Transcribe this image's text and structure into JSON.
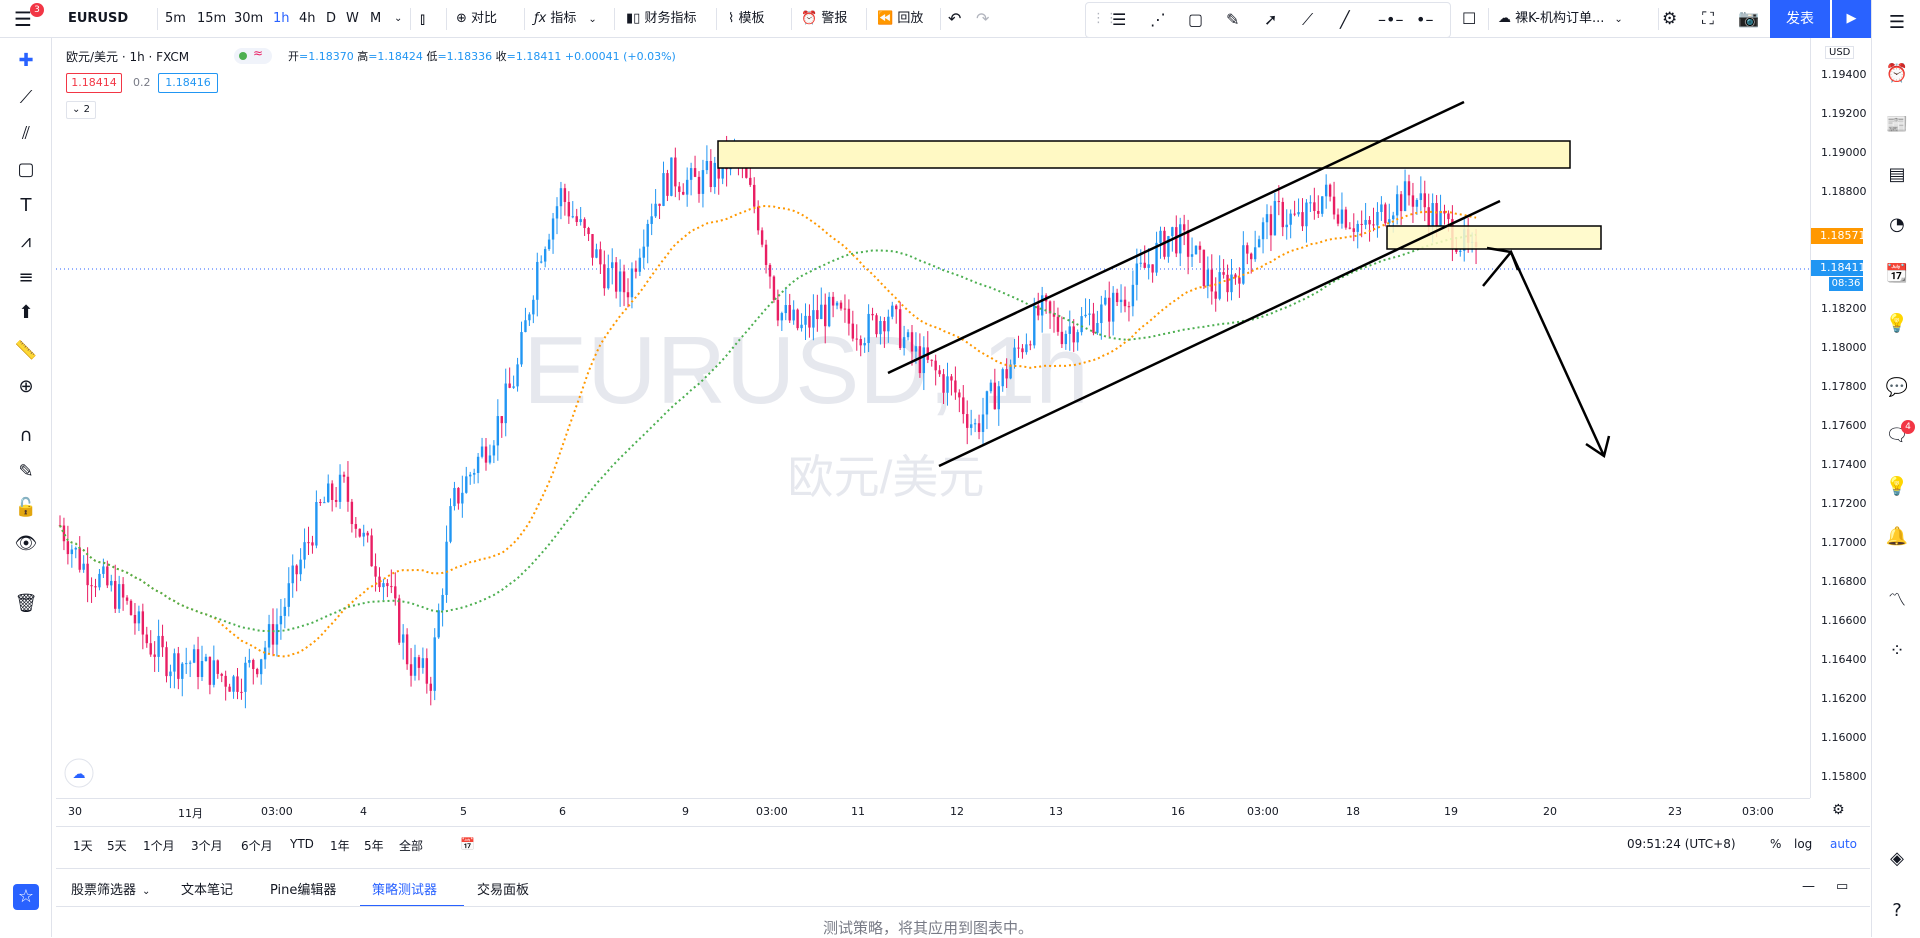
{
  "topbar": {
    "symbol": "EURUSD",
    "menu_badge": "3",
    "intervals": [
      "5m",
      "15m",
      "30m",
      "1h",
      "4h",
      "D",
      "W",
      "M"
    ],
    "active_interval": "1h",
    "compare": "对比",
    "indicators": "指标",
    "financials": "财务指标",
    "templates": "模板",
    "alert": "警报",
    "replay": "回放",
    "layout_name": "裸K-机构订单...",
    "publish": "发表"
  },
  "legend": {
    "title": "欧元/美元 · 1h · FXCM",
    "open_label": "开",
    "open": "=1.18370",
    "high_label": "高",
    "high": "=1.18424",
    "low_label": "低",
    "low": "=1.18336",
    "close_label": "收",
    "close": "=1.18411",
    "change": "+0.00041 (+0.03%)",
    "bid": "1.18414",
    "spread": "0.2",
    "ask": "1.18416",
    "collapse_count": "2"
  },
  "watermark": {
    "symbol": "EURUSD, 1h",
    "name": "欧元/美元"
  },
  "price_axis": {
    "currency": "USD",
    "labels": [
      "1.19400",
      "1.19200",
      "1.19000",
      "1.18800",
      "1.18571",
      "1.18411",
      "1.18200",
      "1.18000",
      "1.17800",
      "1.17600",
      "1.17400",
      "1.17200",
      "1.17000",
      "1.16800",
      "1.16600",
      "1.16400",
      "1.16200",
      "1.16000",
      "1.15800"
    ],
    "ma_badge": "1.18571",
    "price_badge": "1.18411",
    "countdown": "08:36"
  },
  "time_axis": [
    "30",
    "11月",
    "03:00",
    "4",
    "5",
    "6",
    "9",
    "03:00",
    "11",
    "12",
    "13",
    "16",
    "03:00",
    "18",
    "19",
    "20",
    "23",
    "03:00"
  ],
  "range_bar": {
    "ranges": [
      "1天",
      "5天",
      "1个月",
      "3个月",
      "6个月",
      "YTD",
      "1年",
      "5年",
      "全部"
    ],
    "clock": "09:51:24 (UTC+8)",
    "pct": "%",
    "log": "log",
    "auto": "auto"
  },
  "bottom_panel": {
    "tabs": [
      "股票筛选器",
      "文本笔记",
      "Pine编辑器",
      "策略测试器",
      "交易面板"
    ],
    "active_tab": "策略测试器",
    "message": "测试策略，将其应用到图表中。"
  },
  "right_badge": "4",
  "colors": {
    "accent": "#2962ff",
    "up": "#2196f3",
    "down": "#e91e63",
    "ma_fast": "#ff9800",
    "ma_slow": "#4caf50",
    "zone": "#fff9c4"
  },
  "chart_data": {
    "type": "candlestick",
    "ylim": [
      1.157,
      1.196
    ],
    "ma_fast_badge": 1.18571,
    "last_price": 1.18411,
    "series_shape": [
      1.171,
      1.169,
      1.168,
      1.167,
      1.165,
      1.164,
      1.164,
      1.1635,
      1.163,
      1.164,
      1.166,
      1.169,
      1.172,
      1.173,
      1.17,
      1.168,
      1.164,
      1.163,
      1.172,
      1.174,
      1.176,
      1.179,
      1.185,
      1.188,
      1.186,
      1.184,
      1.183,
      1.187,
      1.189,
      1.1885,
      1.189,
      1.19,
      1.187,
      1.182,
      1.181,
      1.182,
      1.1815,
      1.181,
      1.182,
      1.18,
      1.179,
      1.178,
      1.176,
      1.178,
      1.18,
      1.182,
      1.181,
      1.1815,
      1.182,
      1.183,
      1.1845,
      1.186,
      1.185,
      1.183,
      1.184,
      1.186,
      1.187,
      1.1865,
      1.188,
      1.187,
      1.186,
      1.1875,
      1.188,
      1.187,
      1.186,
      1.1845
    ]
  }
}
